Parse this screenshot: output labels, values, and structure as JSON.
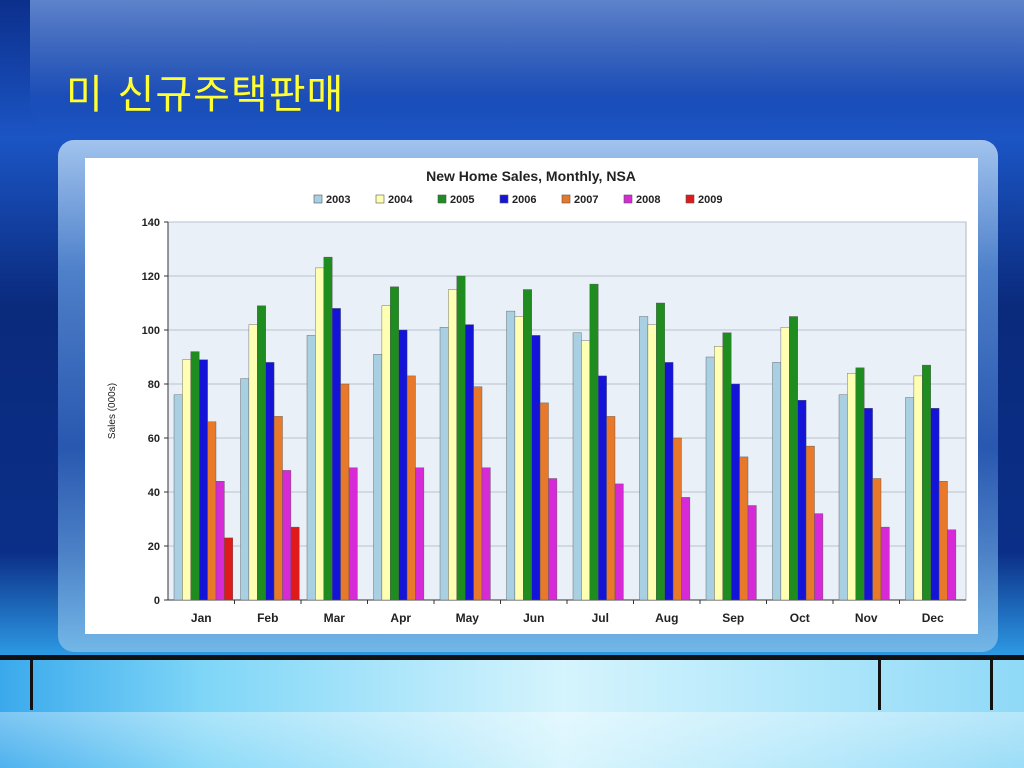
{
  "slide": {
    "title": "미 신규주택판매"
  },
  "chart_data": {
    "type": "bar",
    "title": "New Home Sales, Monthly, NSA",
    "xlabel": "",
    "ylabel": "Sales (000s)",
    "ylim": [
      0,
      140
    ],
    "yticks": [
      "0",
      "20",
      "40",
      "60",
      "80",
      "100",
      "120",
      "140"
    ],
    "grid": true,
    "legend_position": "top",
    "categories": [
      "Jan",
      "Feb",
      "Mar",
      "Apr",
      "May",
      "Jun",
      "Jul",
      "Aug",
      "Sep",
      "Oct",
      "Nov",
      "Dec"
    ],
    "series": [
      {
        "name": "2003",
        "color": "#a9cfe3",
        "values": [
          76,
          82,
          98,
          91,
          101,
          107,
          99,
          105,
          90,
          88,
          76,
          75
        ]
      },
      {
        "name": "2004",
        "color": "#ffffb3",
        "values": [
          89,
          102,
          123,
          109,
          115,
          105,
          96,
          102,
          94,
          101,
          84,
          83
        ]
      },
      {
        "name": "2005",
        "color": "#1e8c1e",
        "values": [
          92,
          109,
          127,
          116,
          120,
          115,
          117,
          110,
          99,
          105,
          86,
          87
        ]
      },
      {
        "name": "2006",
        "color": "#1414d8",
        "values": [
          89,
          88,
          108,
          100,
          102,
          98,
          83,
          88,
          80,
          74,
          71,
          71
        ]
      },
      {
        "name": "2007",
        "color": "#e8782a",
        "values": [
          66,
          68,
          80,
          83,
          79,
          73,
          68,
          60,
          53,
          57,
          45,
          44
        ]
      },
      {
        "name": "2008",
        "color": "#d62ad6",
        "values": [
          44,
          48,
          49,
          49,
          49,
          45,
          43,
          38,
          35,
          32,
          27,
          26
        ]
      },
      {
        "name": "2009",
        "color": "#e01a1a",
        "values": [
          23,
          27,
          null,
          null,
          null,
          null,
          null,
          null,
          null,
          null,
          null,
          null
        ]
      }
    ]
  }
}
